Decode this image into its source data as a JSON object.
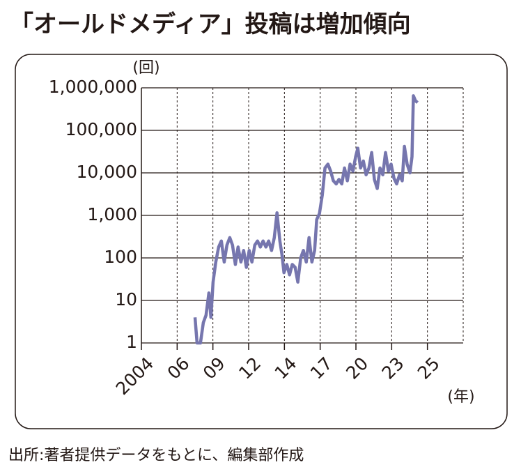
{
  "chart_data": {
    "type": "line",
    "title": "「オールドメディア」投稿は増加傾向",
    "y_unit": "(回)",
    "x_unit": "(年)",
    "source": "出所:著者提供データをもとに、編集部作成",
    "log_scale": true,
    "grid": true,
    "color": "#7676ae",
    "xlim": [
      2004,
      2026.5
    ],
    "xticks": [
      {
        "value": 2004,
        "label": "2004"
      },
      {
        "value": 2006.5,
        "label": "06"
      },
      {
        "value": 2009,
        "label": "09"
      },
      {
        "value": 2011.5,
        "label": "12"
      },
      {
        "value": 2014,
        "label": "14"
      },
      {
        "value": 2016.5,
        "label": "17"
      },
      {
        "value": 2019,
        "label": "20"
      },
      {
        "value": 2021.5,
        "label": "23"
      },
      {
        "value": 2024,
        "label": "25"
      }
    ],
    "ylim": [
      1,
      1000000
    ],
    "yticks": [
      1,
      10,
      100,
      {
        "value": 1000,
        "label": "1,000"
      },
      {
        "value": 10000,
        "label": "10,000"
      },
      {
        "value": 100000,
        "label": "100,000"
      },
      {
        "value": 1000000,
        "label": "1,000,000"
      }
    ],
    "x": [
      2007.75,
      2007.89,
      2008.13,
      2008.33,
      2008.52,
      2008.72,
      2008.86,
      2009.01,
      2009.2,
      2009.4,
      2009.59,
      2009.79,
      2009.98,
      2010.18,
      2010.37,
      2010.57,
      2010.76,
      2010.96,
      2011.15,
      2011.34,
      2011.54,
      2011.73,
      2011.93,
      2012.12,
      2012.32,
      2012.51,
      2012.71,
      2012.9,
      2013.1,
      2013.29,
      2013.48,
      2013.68,
      2013.83,
      2013.97,
      2014.17,
      2014.36,
      2014.55,
      2014.75,
      2014.94,
      2015.14,
      2015.33,
      2015.53,
      2015.72,
      2015.92,
      2016.11,
      2016.26,
      2016.45,
      2016.65,
      2016.84,
      2017.04,
      2017.23,
      2017.42,
      2017.62,
      2017.81,
      2018.01,
      2018.2,
      2018.4,
      2018.59,
      2018.79,
      2018.98,
      2019.13,
      2019.32,
      2019.52,
      2019.71,
      2019.91,
      2020.1,
      2020.29,
      2020.49,
      2020.68,
      2020.88,
      2021.07,
      2021.27,
      2021.46,
      2021.66,
      2021.85,
      2022.05,
      2022.24,
      2022.39,
      2022.58,
      2022.78,
      2022.92,
      2023.02,
      2023.16,
      2023.31
    ],
    "values": [
      4,
      1,
      1,
      3,
      4.5,
      15,
      4,
      27,
      80,
      180,
      250,
      80,
      200,
      300,
      200,
      70,
      180,
      80,
      150,
      60,
      150,
      80,
      200,
      250,
      180,
      250,
      180,
      250,
      150,
      300,
      1150,
      250,
      120,
      45,
      70,
      40,
      70,
      60,
      27,
      100,
      150,
      80,
      300,
      80,
      150,
      800,
      1100,
      3000,
      13000,
      16000,
      11000,
      6500,
      5500,
      7000,
      5500,
      13000,
      6500,
      16000,
      11000,
      24000,
      38000,
      13000,
      19000,
      9000,
      13000,
      30000,
      7000,
      4300,
      13000,
      9000,
      30000,
      11000,
      16000,
      7500,
      5500,
      9000,
      6500,
      42000,
      16000,
      10000,
      24000,
      650000,
      500000,
      450000
    ]
  }
}
